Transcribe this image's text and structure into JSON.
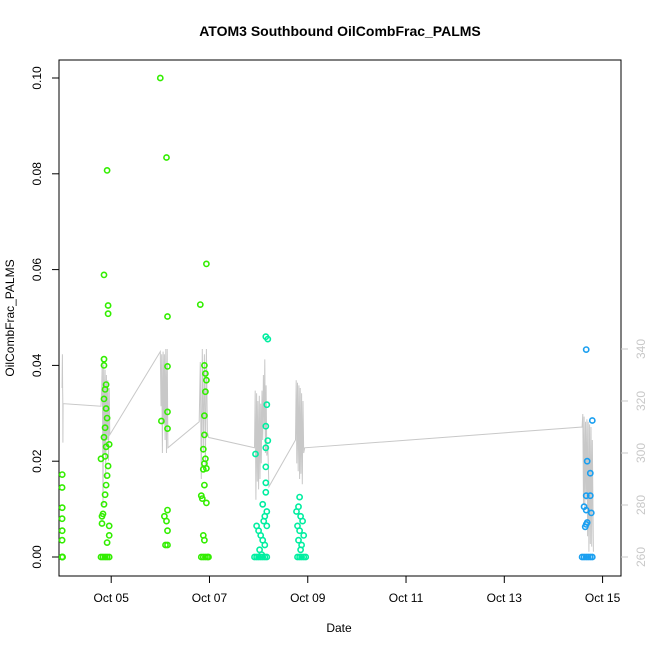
{
  "chart_data": {
    "type": "scatter",
    "title": "ATOM3 Southbound OilCombFrac_PALMS",
    "xlabel": "Date",
    "ylabel": "OilCombFrac_PALMS",
    "x_unit": "date (October 2016)",
    "xlim": [
      "2016-10-03T22:30",
      "2016-10-15T09:00"
    ],
    "ylim": [
      0,
      0.1
    ],
    "y2lim": [
      259,
      342
    ],
    "grid": false,
    "legend": "none",
    "x_ticks": [
      {
        "value": "2016-10-05",
        "label": "Oct 05"
      },
      {
        "value": "2016-10-07",
        "label": "Oct 07"
      },
      {
        "value": "2016-10-09",
        "label": "Oct 09"
      },
      {
        "value": "2016-10-11",
        "label": "Oct 11"
      },
      {
        "value": "2016-10-13",
        "label": "Oct 13"
      },
      {
        "value": "2016-10-15",
        "label": "Oct 15"
      }
    ],
    "y_ticks": [
      {
        "value": 0.0,
        "label": "0.00"
      },
      {
        "value": 0.02,
        "label": "0.02"
      },
      {
        "value": 0.04,
        "label": "0.04"
      },
      {
        "value": 0.06,
        "label": "0.06"
      },
      {
        "value": 0.08,
        "label": "0.08"
      },
      {
        "value": 0.1,
        "label": "0.10"
      }
    ],
    "y2_ticks": [
      {
        "value": 260,
        "label": "260"
      },
      {
        "value": 280,
        "label": "280"
      },
      {
        "value": 300,
        "label": "300"
      },
      {
        "value": 320,
        "label": "320"
      },
      {
        "value": 340,
        "label": "340"
      }
    ],
    "colors": {
      "line_series": "#c8c8c8",
      "point_green": "#33ee00",
      "point_teal": "#00eea0",
      "point_blue": "#1a9ff0",
      "axis": "#000000",
      "right_axis": "#c8c8c8"
    },
    "series": [
      {
        "type": "scatter",
        "axis": "left",
        "points": [
          [
            "2016-10-04T00:00",
            0
          ],
          [
            "2016-10-04T00:05",
            0
          ],
          [
            "2016-10-04T00:10",
            0
          ],
          [
            "2016-10-04T00:15",
            0
          ],
          [
            "2016-10-04T00:00",
            0.0035
          ],
          [
            "2016-10-04T00:05",
            0.0055
          ],
          [
            "2016-10-04T00:00",
            0.008
          ],
          [
            "2016-10-04T00:05",
            0.0103
          ],
          [
            "2016-10-04T00:00",
            0.0145
          ],
          [
            "2016-10-04T00:05",
            0.0172
          ],
          [
            "2016-10-04T19:00",
            0
          ],
          [
            "2016-10-04T20:00",
            0
          ],
          [
            "2016-10-04T21:00",
            0
          ],
          [
            "2016-10-04T22:00",
            0
          ],
          [
            "2016-10-04T23:00",
            0
          ],
          [
            "2016-10-04T19:30",
            0.007
          ],
          [
            "2016-10-04T20:00",
            0.009
          ],
          [
            "2016-10-04T20:30",
            0.011
          ],
          [
            "2016-10-04T21:00",
            0.013
          ],
          [
            "2016-10-04T21:30",
            0.015
          ],
          [
            "2016-10-04T22:00",
            0.017
          ],
          [
            "2016-10-04T22:30",
            0.019
          ],
          [
            "2016-10-04T21:00",
            0.021
          ],
          [
            "2016-10-04T21:30",
            0.023
          ],
          [
            "2016-10-04T20:30",
            0.025
          ],
          [
            "2016-10-04T21:00",
            0.027
          ],
          [
            "2016-10-04T22:00",
            0.029
          ],
          [
            "2016-10-04T21:30",
            0.031
          ],
          [
            "2016-10-04T20:30",
            0.033
          ],
          [
            "2016-10-04T21:00",
            0.035
          ],
          [
            "2016-10-04T21:30",
            0.036
          ],
          [
            "2016-10-04T20:30",
            0.04
          ],
          [
            "2016-10-04T20:30",
            0.0413
          ],
          [
            "2016-10-04T22:30",
            0.0508
          ],
          [
            "2016-10-04T22:30",
            0.0525
          ],
          [
            "2016-10-04T20:30",
            0.0589
          ],
          [
            "2016-10-04T22:00",
            0.0807
          ],
          [
            "2016-10-04T19:00",
            0.0205
          ],
          [
            "2016-10-04T23:00",
            0.0045
          ],
          [
            "2016-10-04T23:00",
            0.0065
          ],
          [
            "2016-10-04T22:00",
            0.003
          ],
          [
            "2016-10-04T19:30",
            0.0085
          ],
          [
            "2016-10-04T23:00",
            0.0235
          ],
          [
            "2016-10-06T00:00",
            0.1
          ],
          [
            "2016-10-06T00:30",
            0.0284
          ],
          [
            "2016-10-06T03:00",
            0.0834
          ],
          [
            "2016-10-06T03:30",
            0.0502
          ],
          [
            "2016-10-06T03:30",
            0.0398
          ],
          [
            "2016-10-06T03:30",
            0.0303
          ],
          [
            "2016-10-06T03:30",
            0.0268
          ],
          [
            "2016-10-06T02:00",
            0.0085
          ],
          [
            "2016-10-06T03:00",
            0.0075
          ],
          [
            "2016-10-06T03:30",
            0.0098
          ],
          [
            "2016-10-06T03:30",
            0.0055
          ],
          [
            "2016-10-06T02:30",
            0.0025
          ],
          [
            "2016-10-06T03:30",
            0.0025
          ],
          [
            "2016-10-06T19:30",
            0.0527
          ],
          [
            "2016-10-06T22:30",
            0.0612
          ],
          [
            "2016-10-06T21:30",
            0.04
          ],
          [
            "2016-10-06T22:00",
            0.0383
          ],
          [
            "2016-10-06T22:30",
            0.0369
          ],
          [
            "2016-10-06T22:00",
            0.0345
          ],
          [
            "2016-10-06T21:30",
            0.0295
          ],
          [
            "2016-10-06T21:30",
            0.0255
          ],
          [
            "2016-10-06T21:00",
            0.0225
          ],
          [
            "2016-10-06T22:00",
            0.0205
          ],
          [
            "2016-10-06T21:30",
            0.0195
          ],
          [
            "2016-10-06T21:00",
            0.0183
          ],
          [
            "2016-10-06T22:30",
            0.0185
          ],
          [
            "2016-10-06T21:30",
            0.015
          ],
          [
            "2016-10-06T20:00",
            0.0128
          ],
          [
            "2016-10-06T20:30",
            0.0122
          ],
          [
            "2016-10-06T22:30",
            0.0113
          ],
          [
            "2016-10-06T21:00",
            0.0045
          ],
          [
            "2016-10-06T21:30",
            0.0035
          ],
          [
            "2016-10-06T20:00",
            0
          ],
          [
            "2016-10-06T21:00",
            0
          ],
          [
            "2016-10-06T22:00",
            0
          ],
          [
            "2016-10-06T23:00",
            0
          ],
          [
            "2016-10-06T23:30",
            0
          ]
        ]
      },
      {
        "type": "scatter",
        "axis": "left",
        "points": [
          [
            "2016-10-07T22:00",
            0
          ],
          [
            "2016-10-07T23:00",
            0
          ],
          [
            "2016-10-08T00:00",
            0
          ],
          [
            "2016-10-08T01:00",
            0
          ],
          [
            "2016-10-08T02:00",
            0
          ],
          [
            "2016-10-08T03:00",
            0
          ],
          [
            "2016-10-08T04:00",
            0
          ],
          [
            "2016-10-07T22:30",
            0.0215
          ],
          [
            "2016-10-08T03:30",
            0.046
          ],
          [
            "2016-10-08T04:30",
            0.0455
          ],
          [
            "2016-10-08T04:00",
            0.0318
          ],
          [
            "2016-10-08T03:30",
            0.0273
          ],
          [
            "2016-10-08T04:30",
            0.0243
          ],
          [
            "2016-10-08T03:30",
            0.0228
          ],
          [
            "2016-10-08T03:30",
            0.0188
          ],
          [
            "2016-10-08T03:30",
            0.0155
          ],
          [
            "2016-10-08T03:30",
            0.0135
          ],
          [
            "2016-10-08T02:00",
            0.011
          ],
          [
            "2016-10-08T04:00",
            0.0095
          ],
          [
            "2016-10-08T03:00",
            0.0085
          ],
          [
            "2016-10-08T02:30",
            0.0075
          ],
          [
            "2016-10-07T23:00",
            0.0065
          ],
          [
            "2016-10-08T00:00",
            0.0055
          ],
          [
            "2016-10-08T01:00",
            0.0045
          ],
          [
            "2016-10-08T02:00",
            0.0035
          ],
          [
            "2016-10-08T03:00",
            0.0025
          ],
          [
            "2016-10-08T00:30",
            0.0015
          ],
          [
            "2016-10-08T01:30",
            0.0005
          ],
          [
            "2016-10-08T04:00",
            0.0065
          ],
          [
            "2016-10-08T19:00",
            0
          ],
          [
            "2016-10-08T20:00",
            0
          ],
          [
            "2016-10-08T21:00",
            0
          ],
          [
            "2016-10-08T22:00",
            0
          ],
          [
            "2016-10-08T23:00",
            0
          ],
          [
            "2016-10-08T20:00",
            0.0125
          ],
          [
            "2016-10-08T19:30",
            0.0105
          ],
          [
            "2016-10-08T18:30",
            0.0095
          ],
          [
            "2016-10-08T20:30",
            0.0085
          ],
          [
            "2016-10-08T21:30",
            0.0075
          ],
          [
            "2016-10-08T19:00",
            0.0065
          ],
          [
            "2016-10-08T20:00",
            0.0055
          ],
          [
            "2016-10-08T22:00",
            0.0045
          ],
          [
            "2016-10-08T19:30",
            0.0035
          ],
          [
            "2016-10-08T21:00",
            0.0025
          ],
          [
            "2016-10-08T20:30",
            0.0015
          ]
        ]
      },
      {
        "type": "scatter",
        "axis": "left",
        "points": [
          [
            "2016-10-14T14:00",
            0
          ],
          [
            "2016-10-14T15:00",
            0
          ],
          [
            "2016-10-14T16:00",
            0
          ],
          [
            "2016-10-14T17:00",
            0
          ],
          [
            "2016-10-14T18:00",
            0
          ],
          [
            "2016-10-14T19:00",
            0
          ],
          [
            "2016-10-14T16:00",
            0.0433
          ],
          [
            "2016-10-14T19:00",
            0.0285
          ],
          [
            "2016-10-14T16:30",
            0.02
          ],
          [
            "2016-10-14T18:00",
            0.0175
          ],
          [
            "2016-10-14T16:00",
            0.0128
          ],
          [
            "2016-10-14T18:00",
            0.0128
          ],
          [
            "2016-10-14T15:00",
            0.0105
          ],
          [
            "2016-10-14T16:00",
            0.0098
          ],
          [
            "2016-10-14T18:30",
            0.0092
          ],
          [
            "2016-10-14T16:30",
            0.0072
          ],
          [
            "2016-10-14T15:30",
            0.0063
          ],
          [
            "2016-10-14T16:00",
            0.0068
          ]
        ]
      },
      {
        "type": "line",
        "axis": "right",
        "points": [
          [
            "2016-10-04T00:00",
            325
          ],
          [
            "2016-10-04T00:05",
            330
          ],
          [
            "2016-10-04T00:10",
            338
          ],
          [
            "2016-10-04T00:15",
            326
          ],
          [
            "2016-10-04T00:20",
            320
          ],
          [
            "2016-10-04T00:25",
            304
          ],
          [
            "2016-10-04T00:30",
            319
          ],
          [
            "2016-10-04T19:00",
            318
          ],
          [
            "2016-10-04T19:20",
            325
          ],
          [
            "2016-10-04T19:40",
            336
          ],
          [
            "2016-10-04T20:00",
            280
          ],
          [
            "2016-10-04T20:20",
            334
          ],
          [
            "2016-10-04T20:40",
            300
          ],
          [
            "2016-10-04T21:00",
            332
          ],
          [
            "2016-10-04T21:20",
            290
          ],
          [
            "2016-10-04T21:40",
            330
          ],
          [
            "2016-10-04T22:00",
            305
          ],
          [
            "2016-10-04T22:20",
            328
          ],
          [
            "2016-10-04T22:40",
            297
          ],
          [
            "2016-10-04T23:00",
            325
          ],
          [
            "2016-10-04T23:20",
            307
          ],
          [
            "2016-10-06T00:00",
            339
          ],
          [
            "2016-10-06T00:20",
            318
          ],
          [
            "2016-10-06T00:40",
            338
          ],
          [
            "2016-10-06T01:00",
            300
          ],
          [
            "2016-10-06T01:20",
            339
          ],
          [
            "2016-10-06T01:40",
            311
          ],
          [
            "2016-10-06T02:00",
            338
          ],
          [
            "2016-10-06T02:20",
            305
          ],
          [
            "2016-10-06T02:40",
            340
          ],
          [
            "2016-10-06T03:00",
            300
          ],
          [
            "2016-10-06T03:20",
            340
          ],
          [
            "2016-10-06T03:40",
            302
          ],
          [
            "2016-10-06T19:00",
            312
          ],
          [
            "2016-10-06T19:30",
            335
          ],
          [
            "2016-10-06T20:00",
            290
          ],
          [
            "2016-10-06T20:30",
            340
          ],
          [
            "2016-10-06T21:00",
            300
          ],
          [
            "2016-10-06T21:30",
            338
          ],
          [
            "2016-10-06T22:00",
            295
          ],
          [
            "2016-10-06T22:30",
            340
          ],
          [
            "2016-10-06T23:00",
            308
          ],
          [
            "2016-10-06T23:30",
            306
          ],
          [
            "2016-10-07T22:00",
            302
          ],
          [
            "2016-10-07T22:20",
            324
          ],
          [
            "2016-10-07T22:40",
            282
          ],
          [
            "2016-10-07T23:00",
            323
          ],
          [
            "2016-10-07T23:20",
            289
          ],
          [
            "2016-10-07T23:40",
            320
          ],
          [
            "2016-10-08T00:00",
            286
          ],
          [
            "2016-10-08T00:20",
            322
          ],
          [
            "2016-10-08T00:40",
            290
          ],
          [
            "2016-10-08T01:00",
            319
          ],
          [
            "2016-10-08T01:20",
            296
          ],
          [
            "2016-10-08T01:40",
            324
          ],
          [
            "2016-10-08T02:00",
            305
          ],
          [
            "2016-10-08T02:20",
            330
          ],
          [
            "2016-10-08T02:40",
            310
          ],
          [
            "2016-10-08T03:00",
            336
          ],
          [
            "2016-10-08T03:20",
            300
          ],
          [
            "2016-10-08T03:40",
            326
          ],
          [
            "2016-10-08T04:00",
            299
          ],
          [
            "2016-10-08T04:30",
            303
          ],
          [
            "2016-10-08T05:00",
            287
          ],
          [
            "2016-10-08T18:00",
            305
          ],
          [
            "2016-10-08T18:20",
            328
          ],
          [
            "2016-10-08T18:40",
            296
          ],
          [
            "2016-10-08T19:00",
            327
          ],
          [
            "2016-10-08T19:20",
            293
          ],
          [
            "2016-10-08T19:40",
            326
          ],
          [
            "2016-10-08T20:00",
            290
          ],
          [
            "2016-10-08T20:20",
            325
          ],
          [
            "2016-10-08T20:40",
            292
          ],
          [
            "2016-10-08T21:00",
            323
          ],
          [
            "2016-10-08T21:20",
            288
          ],
          [
            "2016-10-08T21:40",
            320
          ],
          [
            "2016-10-08T22:00",
            300
          ],
          [
            "2016-10-08T22:30",
            302
          ],
          [
            "2016-10-14T14:00",
            310
          ],
          [
            "2016-10-14T14:20",
            315
          ],
          [
            "2016-10-14T14:40",
            280
          ],
          [
            "2016-10-14T15:00",
            314
          ],
          [
            "2016-10-14T15:20",
            278
          ],
          [
            "2016-10-14T15:40",
            312
          ],
          [
            "2016-10-14T16:00",
            282
          ],
          [
            "2016-10-14T16:20",
            313
          ],
          [
            "2016-10-14T16:40",
            268
          ],
          [
            "2016-10-14T17:00",
            312
          ],
          [
            "2016-10-14T17:20",
            262
          ],
          [
            "2016-10-14T17:40",
            311
          ],
          [
            "2016-10-14T18:00",
            265
          ],
          [
            "2016-10-14T18:20",
            310
          ],
          [
            "2016-10-14T18:40",
            264
          ],
          [
            "2016-10-14T19:00",
            305
          ],
          [
            "2016-10-14T19:30",
            262
          ]
        ]
      }
    ]
  }
}
